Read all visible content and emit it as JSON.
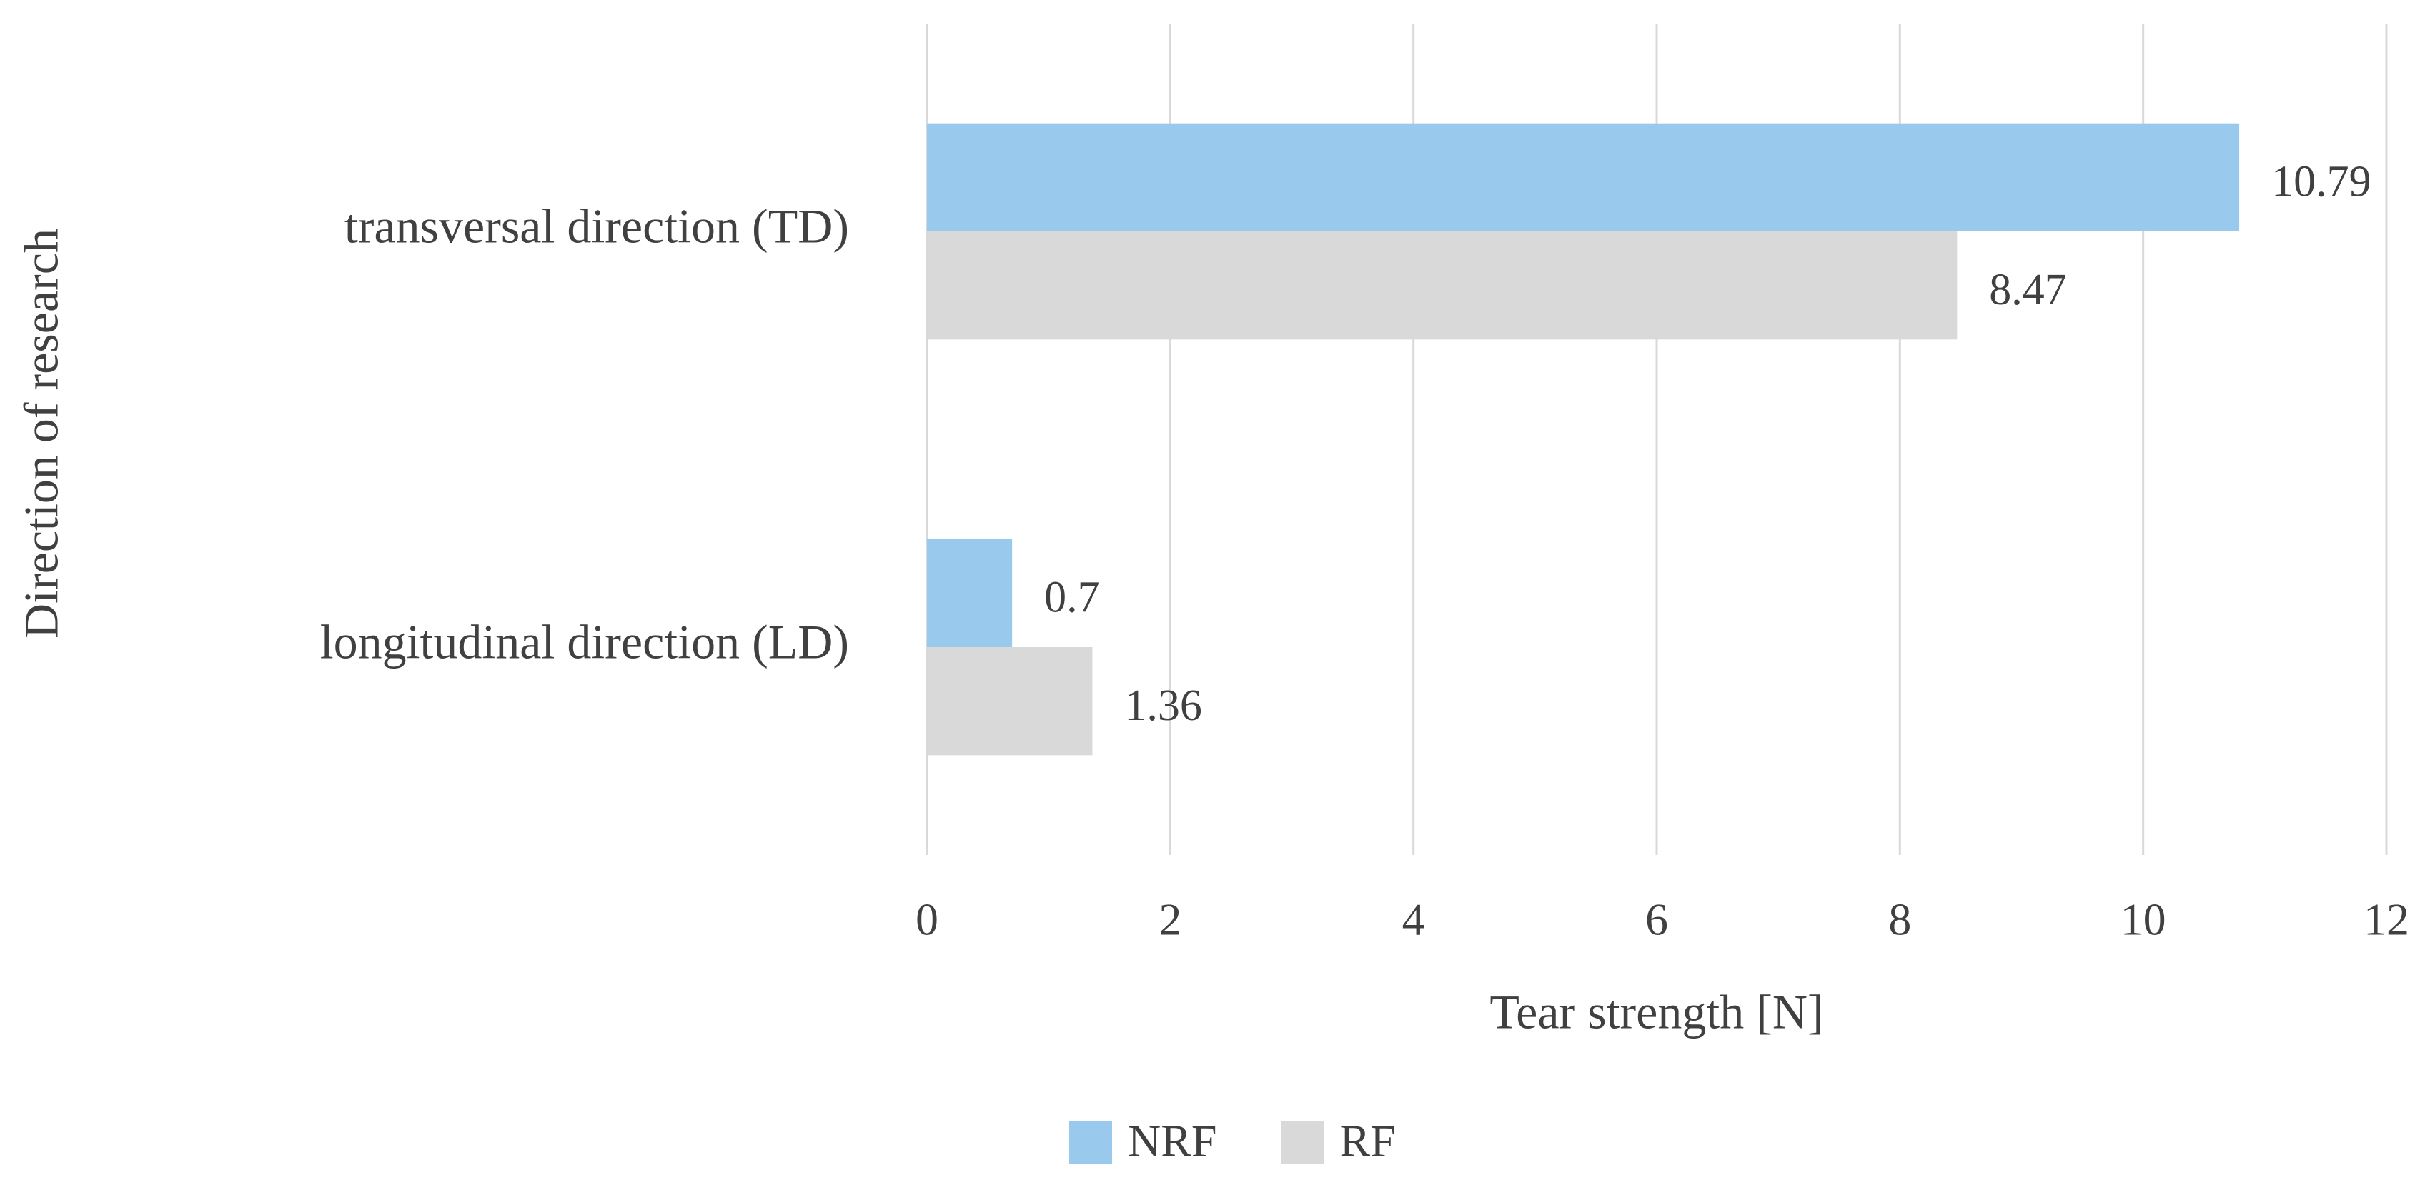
{
  "chart_data": {
    "type": "hbar",
    "x_label": "Tear strength [N]",
    "y_label": "Direction of research",
    "categories": [
      "transversal direction (TD)",
      "longitudinal direction (LD)"
    ],
    "series": [
      {
        "name": "NRF",
        "color": "#99c9ec",
        "values": [
          10.79,
          0.7
        ]
      },
      {
        "name": "RF",
        "color": "#d9d9d9",
        "values": [
          8.47,
          1.36
        ]
      }
    ],
    "xlim": [
      0,
      12
    ],
    "xticks": [
      0,
      2,
      4,
      6,
      8,
      10,
      12
    ],
    "grid": true,
    "legend": "bottom"
  }
}
